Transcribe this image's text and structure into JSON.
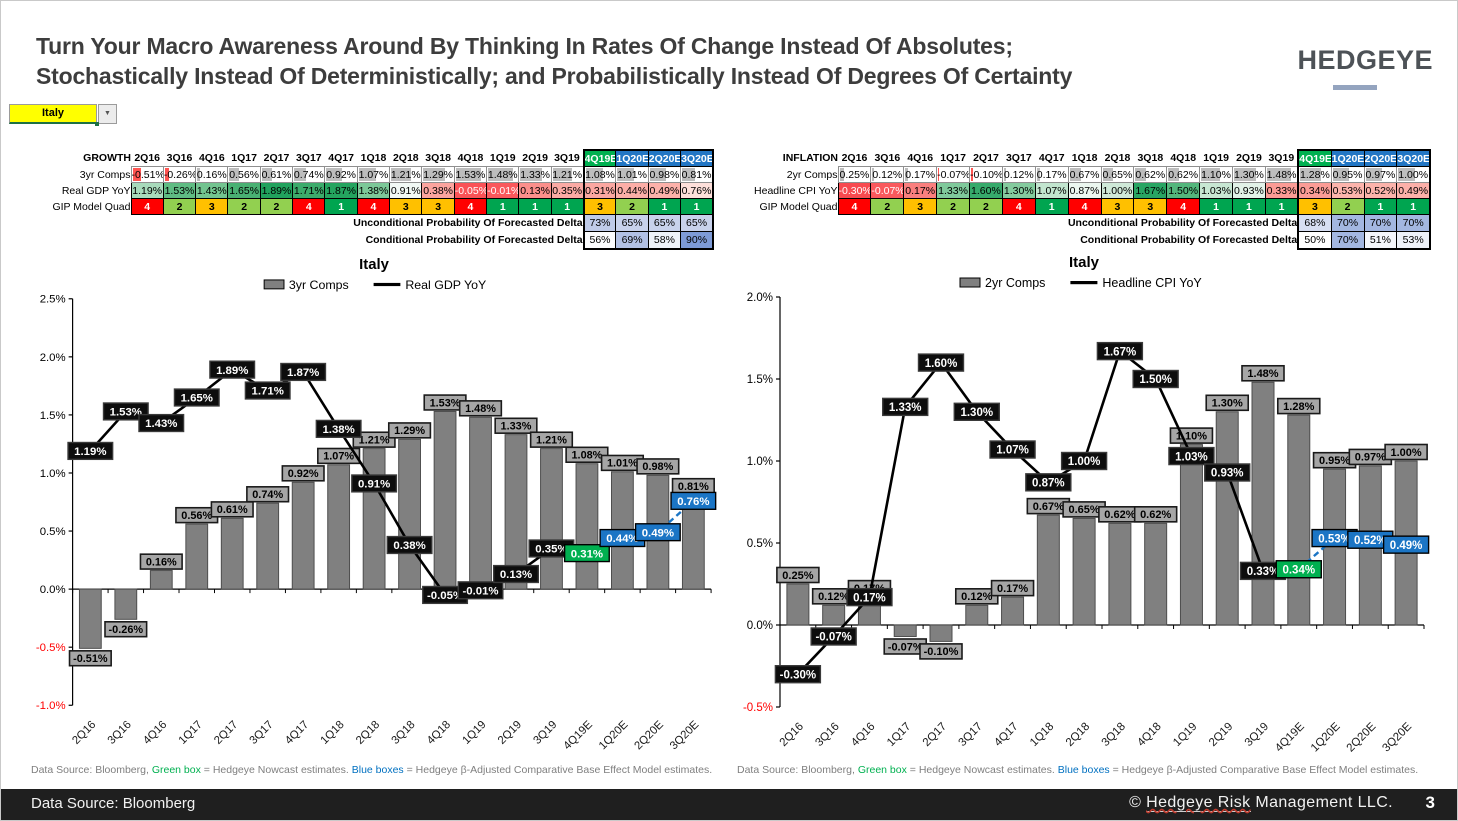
{
  "header": {
    "title_line1": "Turn Your Macro Awareness Around By Thinking In Rates Of Change Instead Of Absolutes;",
    "title_line2": "Stochastically Instead Of Deterministically; and Probabilistically Instead Of Degrees Of Certainty",
    "logo": "HEDGEYE"
  },
  "selector": {
    "value": "Italy"
  },
  "quarters": [
    "2Q16",
    "3Q16",
    "4Q16",
    "1Q17",
    "2Q17",
    "3Q17",
    "4Q17",
    "1Q18",
    "2Q18",
    "3Q18",
    "4Q18",
    "1Q19",
    "2Q19",
    "3Q19",
    "4Q19E",
    "1Q20E",
    "2Q20E",
    "3Q20E"
  ],
  "forecast_start_index": 14,
  "growth_table": {
    "title": "GROWTH",
    "comps_label": "3yr Comps",
    "comps_values": [
      -0.51,
      -0.26,
      0.16,
      0.56,
      0.61,
      0.74,
      0.92,
      1.07,
      1.21,
      1.29,
      1.53,
      1.48,
      1.33,
      1.21,
      1.08,
      1.01,
      0.98,
      0.81
    ],
    "yoy_label": "Real GDP YoY",
    "yoy_values": [
      1.19,
      1.53,
      1.43,
      1.65,
      1.89,
      1.71,
      1.87,
      1.38,
      0.91,
      0.38,
      -0.05,
      -0.01,
      0.13,
      0.35,
      0.31,
      0.44,
      0.49,
      0.76
    ],
    "yoy_bg": [
      "#a8dabb",
      "#5fbc83",
      "#73c490",
      "#49b173",
      "#21a25d",
      "#3cab6b",
      "#24a45f",
      "#7cc898",
      "#f2f9f5",
      "#fba49e",
      "#fa5257",
      "#fa585c",
      "#fb8f8b",
      "#fbaaa4",
      "#fba7a1",
      "#fcaea7",
      "#fcb1aa",
      "#fee0db"
    ],
    "yoy_fg": [
      "#000",
      "#000",
      "#000",
      "#000",
      "#000",
      "#000",
      "#000",
      "#000",
      "#000",
      "#000",
      "#fff",
      "#fff",
      "#000",
      "#000",
      "#000",
      "#000",
      "#000",
      "#000"
    ],
    "quad_label": "GIP Model Quad",
    "quad_values": [
      4,
      2,
      3,
      2,
      2,
      4,
      1,
      4,
      3,
      3,
      4,
      1,
      1,
      1,
      3,
      2,
      1,
      1
    ],
    "uncond_label": "Unconditional Probability Of Forecasted Delta",
    "uncond_values": [
      "73%",
      "65%",
      "65%",
      "65%"
    ],
    "uncond_bg": [
      "#bfcbe9",
      "#c8d2ec",
      "#c8d2ec",
      "#c8d2ec"
    ],
    "cond_label": "Conditional Probability Of Forecasted Delta",
    "cond_values": [
      "56%",
      "69%",
      "58%",
      "90%"
    ],
    "cond_bg": [
      "#fbfcfe",
      "#b2c1e5",
      "#eef2f9",
      "#7e9bd7"
    ]
  },
  "inflation_table": {
    "title": "INFLATION",
    "comps_label": "2yr Comps",
    "comps_values": [
      0.25,
      0.12,
      0.17,
      -0.07,
      -0.1,
      0.12,
      0.17,
      0.67,
      0.65,
      0.62,
      0.62,
      1.1,
      1.3,
      1.48,
      1.28,
      0.95,
      0.97,
      1.0
    ],
    "yoy_label": "Headline CPI YoY",
    "yoy_values": [
      -0.3,
      -0.07,
      0.17,
      1.33,
      1.6,
      1.3,
      1.07,
      0.87,
      1.0,
      1.67,
      1.5,
      1.03,
      0.93,
      0.33,
      0.34,
      0.53,
      0.52,
      0.49
    ],
    "yoy_bg": [
      "#f84a50",
      "#f9595d",
      "#fa7f7e",
      "#7fc99b",
      "#36aa6b",
      "#84cb9e",
      "#c2e5cf",
      "#ecf7f0",
      "#cfe9d8",
      "#28a563",
      "#53b67c",
      "#c8e7d3",
      "#e2f2e8",
      "#fb9b95",
      "#fb9c96",
      "#fcb4ac",
      "#fcb3ab",
      "#fcb0a9"
    ],
    "yoy_fg": [
      "#fff",
      "#fff",
      "#000",
      "#000",
      "#000",
      "#000",
      "#000",
      "#000",
      "#000",
      "#000",
      "#000",
      "#000",
      "#000",
      "#000",
      "#000",
      "#000",
      "#000",
      "#000"
    ],
    "quad_label": "GIP Model Quad",
    "quad_values": [
      4,
      2,
      3,
      2,
      2,
      4,
      1,
      4,
      3,
      3,
      4,
      1,
      1,
      1,
      3,
      2,
      1,
      1
    ],
    "uncond_label": "Unconditional Probability Of Forecasted Delta",
    "uncond_values": [
      "68%",
      "70%",
      "70%",
      "70%"
    ],
    "uncond_bg": [
      "#d7def1",
      "#a3b7e1",
      "#a3b7e1",
      "#a3b7e1"
    ],
    "cond_label": "Conditional Probability Of Forecasted Delta",
    "cond_values": [
      "50%",
      "70%",
      "51%",
      "53%"
    ],
    "cond_bg": [
      "#ffffff",
      "#a3b7e1",
      "#f4f6fb",
      "#eef2f9"
    ]
  },
  "chart_data": [
    {
      "type": "bar",
      "title": "Italy",
      "categories": [
        "2Q16",
        "3Q16",
        "4Q16",
        "1Q17",
        "2Q17",
        "3Q17",
        "4Q17",
        "1Q18",
        "2Q18",
        "3Q18",
        "4Q18",
        "1Q19",
        "2Q19",
        "3Q19",
        "4Q19E",
        "1Q20E",
        "2Q20E",
        "3Q20E"
      ],
      "series": [
        {
          "name": "3yr Comps",
          "type": "bar",
          "values": [
            -0.51,
            -0.26,
            0.16,
            0.56,
            0.61,
            0.74,
            0.92,
            1.07,
            1.21,
            1.29,
            1.53,
            1.48,
            1.33,
            1.21,
            1.08,
            1.01,
            0.98,
            0.81
          ]
        },
        {
          "name": "Real GDP YoY",
          "type": "line",
          "values": [
            1.19,
            1.53,
            1.43,
            1.65,
            1.89,
            1.71,
            1.87,
            1.38,
            0.91,
            0.38,
            -0.05,
            -0.01,
            0.13,
            0.35,
            0.31,
            0.44,
            0.49,
            0.76
          ]
        }
      ],
      "ylim": [
        -1.0,
        2.5
      ],
      "ytick_step": 0.5,
      "grid": false,
      "legend_position": "top",
      "nowcast_index": 14
    },
    {
      "type": "bar",
      "title": "Italy",
      "categories": [
        "2Q16",
        "3Q16",
        "4Q16",
        "1Q17",
        "2Q17",
        "3Q17",
        "4Q17",
        "1Q18",
        "2Q18",
        "3Q18",
        "4Q18",
        "1Q19",
        "2Q19",
        "3Q19",
        "4Q19E",
        "1Q20E",
        "2Q20E",
        "3Q20E"
      ],
      "series": [
        {
          "name": "2yr Comps",
          "type": "bar",
          "values": [
            0.25,
            0.12,
            0.17,
            -0.07,
            -0.1,
            0.12,
            0.17,
            0.67,
            0.65,
            0.62,
            0.62,
            1.1,
            1.3,
            1.48,
            1.28,
            0.95,
            0.97,
            1.0
          ]
        },
        {
          "name": "Headline CPI YoY",
          "type": "line",
          "values": [
            -0.3,
            -0.07,
            0.17,
            1.33,
            1.6,
            1.3,
            1.07,
            0.87,
            1.0,
            1.67,
            1.5,
            1.03,
            0.93,
            0.33,
            0.34,
            0.53,
            0.52,
            0.49
          ]
        }
      ],
      "ylim": [
        -0.5,
        2.0
      ],
      "ytick_step": 0.5,
      "grid": false,
      "legend_position": "top",
      "nowcast_index": 14
    }
  ],
  "colors": {
    "bar_fill": "#808080",
    "bar_stroke": "#4d4d4d",
    "line": "#000000",
    "nowcast_green": "#00b050",
    "estimate_blue": "#1b75c5",
    "bar_label_bg": "#a6a6a6",
    "quad_1": "#00a550",
    "quad_2": "#92d050",
    "quad_3": "#ffc000",
    "quad_4": "#ff0000",
    "header_green": "#00b050",
    "header_blue": "#2276c4",
    "databar_pos": "#bdbdbd",
    "databar_neg": "#ff5552",
    "neg_axis_label": "#ff0000"
  },
  "footnote": {
    "p1": "Data Source: Bloomberg,",
    "green": "Green box",
    "p2": "= Hedgeye Nowcast estimates.",
    "blue": "Blue boxes",
    "p3": "= Hedgeye β-Adjusted Comparative Base Effect Model estimates."
  },
  "footer": {
    "left": "Data Source: Bloomberg",
    "right_prefix": "© ",
    "right_underlined": "Hedgeye Risk",
    "right_suffix": " Management LLC.",
    "page": "3"
  }
}
